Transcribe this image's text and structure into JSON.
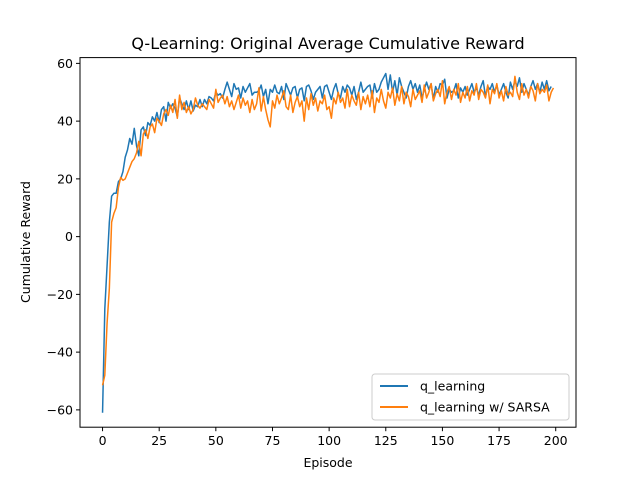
{
  "chart_data": {
    "type": "line",
    "title": "Q-Learning: Original Average Cumulative Reward",
    "xlabel": "Episode",
    "ylabel": "Cumulative Reward",
    "xlim": [
      -9.95,
      208.95
    ],
    "ylim": [
      -66,
      62
    ],
    "xticks": [
      0,
      25,
      50,
      75,
      100,
      125,
      150,
      175,
      200
    ],
    "yticks": [
      -60,
      -40,
      -20,
      0,
      20,
      40,
      60
    ],
    "grid": false,
    "legend_position": "lower-right",
    "series": [
      {
        "name": "q_learning",
        "color": "#1f77b4",
        "values": [
          -61.0,
          -25.0,
          -10.0,
          5.0,
          14.0,
          15.0,
          15.0,
          19.0,
          20.0,
          22.5,
          27.5,
          30.0,
          34.0,
          32.0,
          37.5,
          31.5,
          28.0,
          37.0,
          38.0,
          35.0,
          39.5,
          38.5,
          41.5,
          40.0,
          43.0,
          39.5,
          44.0,
          45.0,
          40.0,
          46.5,
          44.5,
          46.0,
          44.5,
          41.5,
          48.0,
          46.0,
          44.0,
          47.0,
          44.0,
          47.0,
          43.5,
          45.5,
          45.0,
          47.5,
          45.0,
          47.5,
          46.0,
          48.5,
          48.0,
          47.0,
          50.0,
          49.0,
          49.5,
          48.0,
          51.0,
          53.5,
          51.0,
          48.5,
          53.0,
          51.0,
          51.5,
          48.0,
          52.0,
          50.0,
          51.5,
          53.0,
          49.0,
          50.0,
          50.0,
          50.5,
          52.5,
          48.5,
          51.0,
          46.0,
          51.0,
          50.0,
          52.5,
          50.0,
          49.5,
          52.0,
          47.5,
          53.0,
          51.0,
          49.0,
          51.5,
          52.0,
          48.0,
          51.0,
          51.5,
          47.0,
          52.0,
          52.5,
          50.5,
          47.5,
          50.0,
          51.0,
          52.0,
          48.0,
          52.0,
          52.5,
          50.0,
          47.5,
          51.0,
          53.0,
          49.5,
          48.0,
          52.0,
          50.0,
          52.5,
          51.5,
          49.0,
          52.0,
          47.5,
          50.0,
          53.5,
          50.0,
          51.0,
          52.0,
          52.5,
          48.0,
          53.0,
          50.0,
          51.0,
          53.5,
          55.0,
          56.5,
          51.0,
          56.0,
          50.0,
          54.0,
          49.0,
          55.0,
          52.0,
          50.0,
          48.0,
          52.0,
          54.0,
          51.0,
          53.0,
          50.0,
          52.5,
          48.0,
          51.0,
          53.5,
          51.0,
          53.0,
          47.5,
          52.0,
          50.0,
          53.0,
          52.5,
          54.5,
          48.0,
          51.0,
          50.0,
          50.5,
          53.0,
          48.0,
          51.5,
          50.0,
          52.0,
          49.0,
          51.0,
          53.0,
          50.0,
          51.5,
          49.0,
          52.0,
          54.0,
          48.5,
          52.0,
          51.0,
          53.0,
          50.0,
          52.5,
          49.0,
          51.0,
          53.0,
          50.0,
          48.0,
          53.5,
          51.0,
          54.0,
          52.0,
          55.0,
          50.0,
          53.0,
          51.0,
          49.0,
          52.0,
          54.0,
          51.0,
          53.0,
          50.0,
          53.5,
          51.0,
          54.0,
          50.5,
          52.0
        ]
      },
      {
        "name": "q_learning w/ SARSA",
        "color": "#ff7f0e",
        "values": [
          -51.5,
          -48.0,
          -30.0,
          -18.0,
          5.0,
          8.0,
          10.0,
          17.0,
          20.5,
          19.5,
          20.0,
          22.0,
          24.0,
          26.0,
          27.0,
          29.0,
          33.0,
          28.0,
          35.5,
          37.0,
          34.0,
          38.0,
          39.0,
          36.0,
          41.0,
          40.0,
          38.5,
          42.5,
          44.0,
          42.0,
          45.5,
          43.0,
          47.5,
          41.0,
          49.0,
          44.0,
          46.5,
          43.0,
          45.0,
          42.5,
          44.0,
          48.0,
          45.5,
          44.5,
          46.0,
          45.0,
          44.0,
          47.5,
          46.0,
          44.5,
          51.0,
          46.5,
          48.0,
          49.0,
          46.0,
          48.5,
          45.0,
          47.0,
          44.0,
          46.5,
          49.0,
          44.5,
          48.0,
          45.5,
          47.0,
          43.0,
          47.5,
          44.0,
          46.0,
          51.5,
          43.5,
          48.5,
          44.0,
          40.5,
          38.0,
          47.0,
          44.5,
          49.0,
          46.0,
          48.0,
          50.5,
          45.0,
          44.0,
          49.0,
          43.0,
          46.5,
          48.5,
          45.0,
          47.0,
          40.0,
          48.0,
          44.0,
          49.5,
          45.5,
          48.0,
          43.5,
          47.0,
          46.0,
          49.0,
          44.0,
          45.0,
          41.0,
          48.0,
          46.0,
          50.0,
          46.5,
          48.0,
          44.5,
          51.0,
          45.0,
          49.0,
          47.0,
          45.5,
          50.0,
          44.0,
          48.5,
          46.0,
          49.0,
          45.0,
          50.5,
          43.0,
          48.0,
          46.5,
          51.0,
          47.0,
          44.5,
          50.0,
          48.0,
          51.5,
          45.5,
          49.5,
          47.0,
          52.0,
          46.0,
          50.0,
          48.5,
          45.0,
          51.0,
          47.5,
          49.0,
          50.5,
          46.5,
          52.5,
          48.0,
          50.0,
          53.0,
          47.0,
          49.5,
          51.0,
          48.5,
          54.0,
          46.0,
          50.0,
          52.0,
          47.5,
          51.0,
          49.0,
          53.0,
          46.5,
          50.0,
          48.0,
          52.0,
          47.0,
          50.5,
          49.0,
          53.0,
          47.5,
          51.0,
          50.0,
          48.0,
          52.5,
          46.0,
          51.0,
          49.5,
          53.0,
          48.0,
          50.5,
          47.0,
          52.0,
          49.0,
          50.0,
          48.5,
          55.5,
          50.0,
          47.5,
          53.0,
          49.0,
          51.0,
          48.0,
          52.0,
          50.5,
          47.0,
          53.0,
          49.5,
          51.0,
          50.0,
          52.5,
          47.0,
          50.0,
          51.5
        ]
      }
    ]
  }
}
